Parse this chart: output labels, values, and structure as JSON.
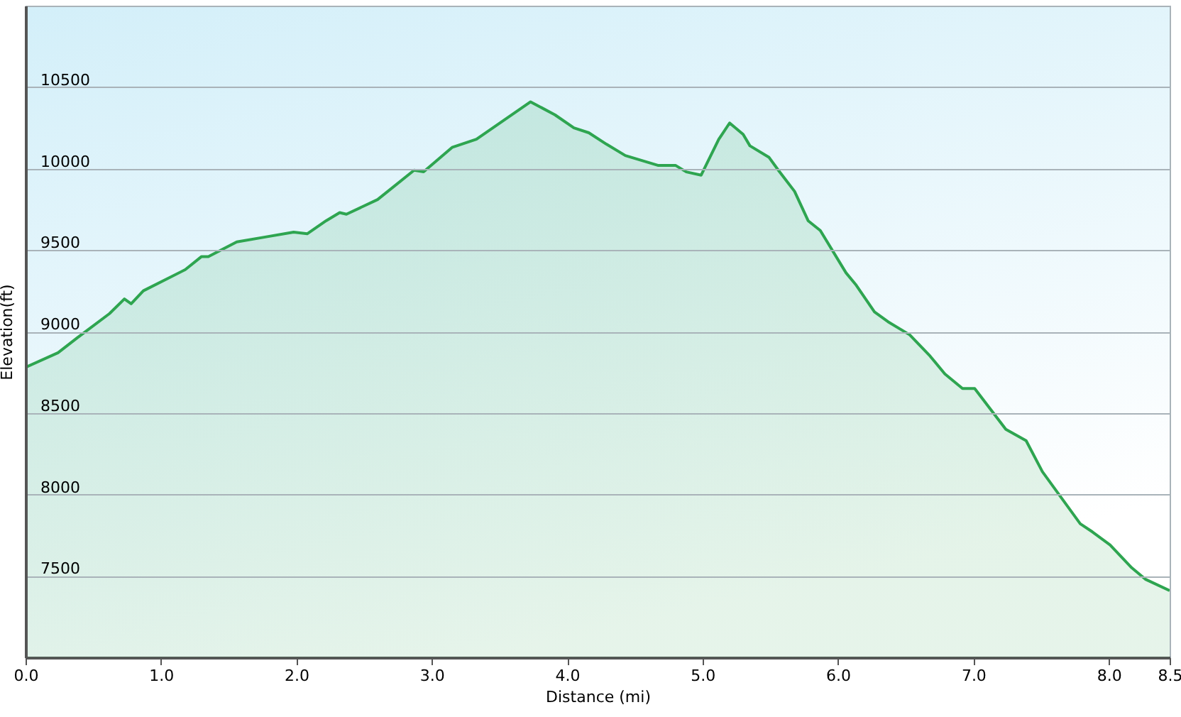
{
  "chart_data": {
    "type": "area",
    "xlabel": "Distance  (mi)",
    "ylabel": "Elevation(ft)",
    "x": [
      0,
      0.24,
      0.38,
      0.62,
      0.73,
      0.78,
      0.87,
      1.18,
      1.3,
      1.35,
      1.56,
      1.77,
      1.98,
      2.08,
      2.22,
      2.32,
      2.37,
      2.6,
      2.87,
      2.94,
      3.15,
      3.33,
      3.73,
      3.91,
      4.05,
      4.16,
      4.29,
      4.43,
      4.67,
      4.8,
      4.88,
      4.99,
      5.12,
      5.2,
      5.3,
      5.35,
      5.49,
      5.56,
      5.68,
      5.78,
      5.87,
      6.06,
      6.13,
      6.27,
      6.37,
      6.53,
      6.68,
      6.79,
      6.92,
      7.01,
      7.24,
      7.39,
      7.51,
      7.79,
      7.88,
      8.01,
      8.17,
      8.27,
      8.45
    ],
    "series": [
      {
        "color": "#2ea550",
        "values": [
          8780,
          8870,
          8960,
          9110,
          9200,
          9170,
          9250,
          9380,
          9460,
          9460,
          9550,
          9580,
          9610,
          9600,
          9680,
          9730,
          9720,
          9810,
          9990,
          9980,
          10130,
          10180,
          10410,
          10330,
          10250,
          10220,
          10150,
          10080,
          10020,
          10020,
          9980,
          9960,
          10180,
          10280,
          10210,
          10140,
          10070,
          9990,
          9860,
          9680,
          9620,
          9360,
          9290,
          9120,
          9060,
          8980,
          8850,
          8740,
          8650,
          8650,
          8400,
          8330,
          8140,
          7820,
          7770,
          7690,
          7550,
          7480,
          7410
        ]
      }
    ],
    "xlim": [
      0,
      8.45
    ],
    "xticks": [
      {
        "value": 0,
        "label": "0.0"
      },
      {
        "value": 1,
        "label": "1.0"
      },
      {
        "value": 2,
        "label": "2.0"
      },
      {
        "value": 3,
        "label": "3.0"
      },
      {
        "value": 4,
        "label": "4.0"
      },
      {
        "value": 5,
        "label": "5.0"
      },
      {
        "value": 6,
        "label": "6.0"
      },
      {
        "value": 7,
        "label": "7.0"
      },
      {
        "value": 8,
        "label": "8.0"
      },
      {
        "value": 8.45,
        "label": "8.5"
      }
    ],
    "ylim": [
      7000,
      11000
    ],
    "yticks": [
      7500,
      8000,
      8500,
      9000,
      9500,
      10000,
      10500
    ],
    "grid": "y",
    "marker": "none",
    "line_style": "solid"
  }
}
